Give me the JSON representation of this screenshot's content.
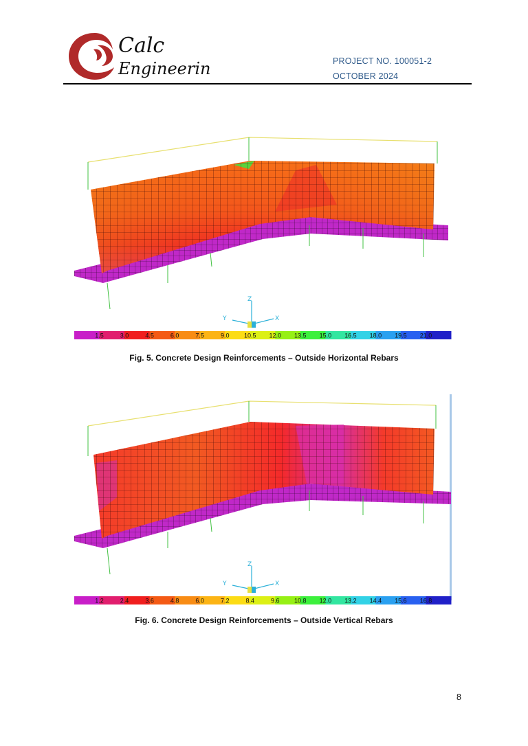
{
  "header": {
    "logo_line1": "Calc",
    "logo_line2": "Engineering",
    "project": "PROJECT NO. 100051-2",
    "date": "OCTOBER 2024"
  },
  "figures": [
    {
      "caption": "Fig. 5. Concrete Design Reinforcements – Outside Horizontal Rebars",
      "scale_values": [
        "1.5",
        "3.0",
        "4.5",
        "6.0",
        "7.5",
        "9.0",
        "10.5",
        "12.0",
        "13.5",
        "15.0",
        "16.5",
        "18.0",
        "19.5",
        "21.0"
      ],
      "axes": [
        "Z",
        "Y",
        "X"
      ]
    },
    {
      "caption": "Fig. 6. Concrete Design Reinforcements – Outside Vertical Rebars",
      "scale_values": [
        "1.2",
        "2.4",
        "3.6",
        "4.8",
        "6.0",
        "7.2",
        "8.4",
        "9.6",
        "10.8",
        "12.0",
        "13.2",
        "14.4",
        "15.6",
        "16.8"
      ],
      "axes": [
        "Z",
        "Y",
        "X"
      ]
    }
  ],
  "colors": {
    "scale": [
      "#c81ec8",
      "#e11e6e",
      "#f01e1e",
      "#f45a14",
      "#f88c14",
      "#fcb414",
      "#fcdc14",
      "#dcf014",
      "#96f014",
      "#3cf03c",
      "#32e6a0",
      "#32d2e6",
      "#2aa0f0",
      "#2860f0",
      "#2020c8"
    ],
    "accent": "#2f5a8a",
    "logo": "#b02a2a"
  },
  "page": {
    "number": "8"
  }
}
